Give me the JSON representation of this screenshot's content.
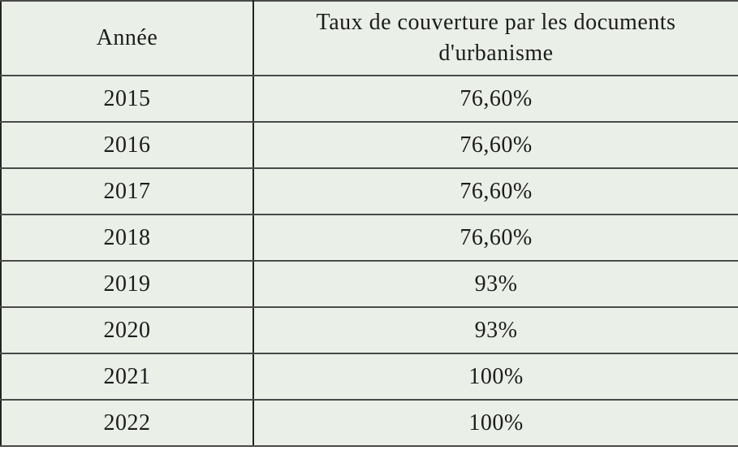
{
  "table": {
    "headers": {
      "annee": "Année",
      "taux": "Taux de couverture par les documents d'urbanisme"
    },
    "rows": [
      {
        "annee": "2015",
        "taux": "76,60%"
      },
      {
        "annee": "2016",
        "taux": "76,60%"
      },
      {
        "annee": "2017",
        "taux": "76,60%"
      },
      {
        "annee": "2018",
        "taux": "76,60%"
      },
      {
        "annee": "2019",
        "taux": "93%"
      },
      {
        "annee": "2020",
        "taux": "93%"
      },
      {
        "annee": "2021",
        "taux": "100%"
      },
      {
        "annee": "2022",
        "taux": "100%"
      }
    ]
  },
  "chart_data": {
    "type": "table",
    "title": "Taux de couverture par les documents d'urbanisme",
    "columns": [
      "Année",
      "Taux de couverture par les documents d'urbanisme"
    ],
    "categories": [
      "2015",
      "2016",
      "2017",
      "2018",
      "2019",
      "2020",
      "2021",
      "2022"
    ],
    "values_percent": [
      76.6,
      76.6,
      76.6,
      76.6,
      93,
      93,
      100,
      100
    ],
    "cell_values": [
      "76,60%",
      "76,60%",
      "76,60%",
      "76,60%",
      "93%",
      "93%",
      "100%",
      "100%"
    ]
  },
  "colors": {
    "table_background": "#eaefe8",
    "border": "#4a4a4a",
    "column_divider": "#242424",
    "text": "#1c1c1c",
    "page_background": "#ffffff"
  }
}
